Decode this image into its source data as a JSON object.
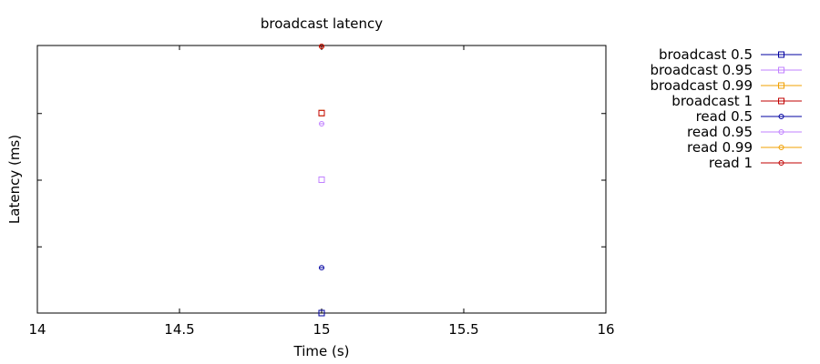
{
  "chart_data": {
    "type": "scatter",
    "title": "broadcast latency",
    "xlabel": "Time (s)",
    "ylabel": "Latency (ms)",
    "xlim": [
      14,
      16
    ],
    "ylim": [
      0,
      1
    ],
    "x_ticks": [
      "14",
      "14.5",
      "15",
      "15.5",
      "16"
    ],
    "y_ticks_labeled": false,
    "grid": false,
    "legend_position": "right",
    "series": [
      {
        "name": "broadcast 0.5",
        "color": "#0000a0",
        "marker": "square",
        "x": [
          15
        ],
        "y": [
          0.0
        ]
      },
      {
        "name": "broadcast 0.95",
        "color": "#c080ff",
        "marker": "square",
        "x": [
          15
        ],
        "y": [
          0.5
        ]
      },
      {
        "name": "broadcast 0.99",
        "color": "#f0a000",
        "marker": "square",
        "x": [
          15
        ],
        "y": [
          0.75
        ]
      },
      {
        "name": "broadcast 1",
        "color": "#c00000",
        "marker": "square",
        "x": [
          15
        ],
        "y": [
          0.75
        ]
      },
      {
        "name": "read 0.5",
        "color": "#0000a0",
        "marker": "circle",
        "x": [
          15
        ],
        "y": [
          0.17
        ]
      },
      {
        "name": "read 0.95",
        "color": "#c080ff",
        "marker": "circle",
        "x": [
          15
        ],
        "y": [
          0.71
        ]
      },
      {
        "name": "read 0.99",
        "color": "#f0a000",
        "marker": "circle",
        "x": [
          15
        ],
        "y": [
          1.0
        ]
      },
      {
        "name": "read 1",
        "color": "#c00000",
        "marker": "circle",
        "x": [
          15
        ],
        "y": [
          1.0
        ]
      }
    ]
  }
}
